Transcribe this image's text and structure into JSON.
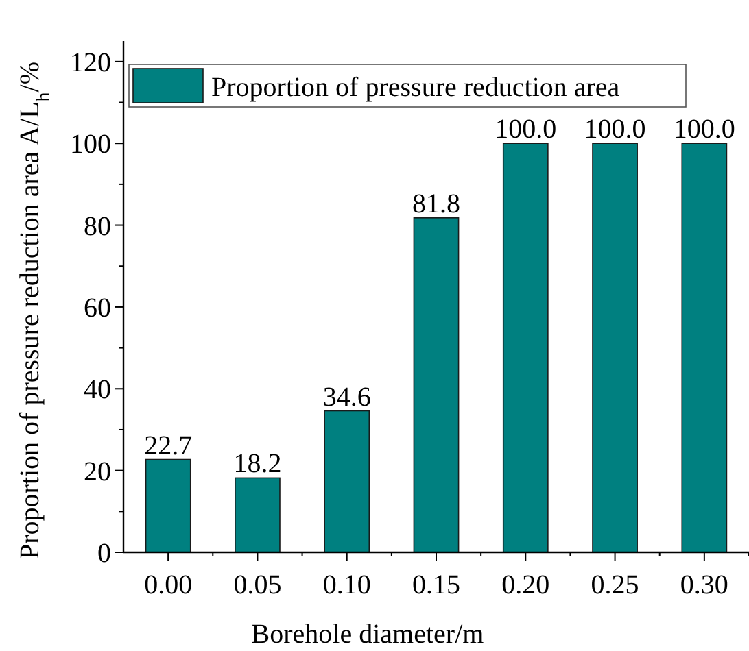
{
  "chart_data": {
    "type": "bar",
    "xlabel": "Borehole diameter/m",
    "ylabel": "Proportion of pressure reduction area A/L$_{h}$/%",
    "categories": [
      "0.00",
      "0.05",
      "0.10",
      "0.15",
      "0.20",
      "0.25",
      "0.30"
    ],
    "series": [
      {
        "name": "Proportion of pressure reduction area",
        "color": "#008080",
        "values": [
          22.7,
          18.2,
          34.6,
          81.8,
          100.0,
          100.0,
          100.0
        ]
      }
    ],
    "value_labels": [
      "22.7",
      "18.2",
      "34.6",
      "81.8",
      "100.0",
      "100.0",
      "100.0"
    ],
    "ylim": [
      0,
      125
    ],
    "yticks": [
      0,
      20,
      40,
      60,
      80,
      100,
      120
    ],
    "legend": "top left",
    "grid": false
  }
}
